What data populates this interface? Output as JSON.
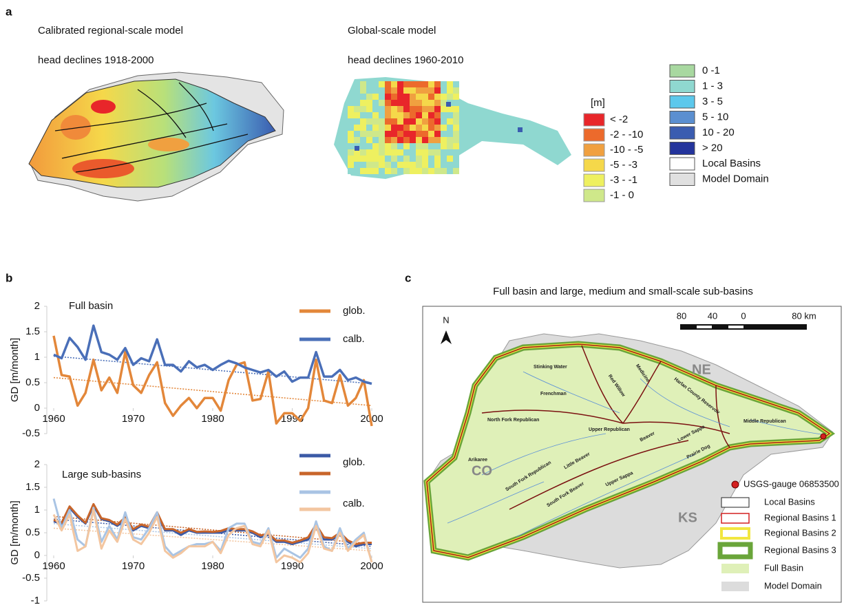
{
  "panel_labels": [
    "a",
    "b",
    "c"
  ],
  "panel_a": {
    "regional_title": "Calibrated regional-scale model",
    "regional_subtitle": "head declines 1918-2000",
    "global_title": "Global-scale model",
    "global_subtitle": "head declines 1960-2010",
    "legend_title": "[m]",
    "legend_decline": [
      {
        "label": "< -2",
        "color": "#e8262a"
      },
      {
        "label": "-2 - -10",
        "color": "#ec6a2c"
      },
      {
        "label": "-10 - -5",
        "color": "#f0a040"
      },
      {
        "label": "-5 - -3",
        "color": "#f5d84a"
      },
      {
        "label": "-3 - -1",
        "color": "#eef060"
      },
      {
        "label": "-1 - 0",
        "color": "#cfe88a"
      }
    ],
    "legend_rise": [
      {
        "label": "0 -1",
        "color": "#a8d8a0"
      },
      {
        "label": "1 - 3",
        "color": "#8fd8d0"
      },
      {
        "label": "3 - 5",
        "color": "#5cc8ec"
      },
      {
        "label": "5  - 10",
        "color": "#5b8fd0"
      },
      {
        "label": "10 - 20",
        "color": "#3a5cb0"
      },
      {
        "label": "> 20",
        "color": "#24349c"
      },
      {
        "label": "Local Basins",
        "color": "#ffffff"
      },
      {
        "label": "Model Domain",
        "color": "#e0e0e0"
      }
    ]
  },
  "chart_data": [
    {
      "type": "line",
      "title": "Full basin",
      "y_label": "GD [m/month]",
      "x": [
        1960,
        1961,
        1962,
        1963,
        1964,
        1965,
        1966,
        1967,
        1968,
        1969,
        1970,
        1971,
        1972,
        1973,
        1974,
        1975,
        1976,
        1977,
        1978,
        1979,
        1980,
        1981,
        1982,
        1983,
        1984,
        1985,
        1986,
        1987,
        1988,
        1989,
        1990,
        1991,
        1992,
        1993,
        1994,
        1995,
        1996,
        1997,
        1998,
        1999,
        2000
      ],
      "xlim": [
        1960,
        2000
      ],
      "xticks": [
        1960,
        1970,
        1980,
        1990,
        2000
      ],
      "ylim": [
        -0.5,
        2
      ],
      "yticks": [
        -0.5,
        0,
        0.5,
        1,
        1.5,
        2
      ],
      "grid": false,
      "series": [
        {
          "name": "glob.",
          "lines": [
            {
              "color": "#e3873a",
              "trend": [
                0.6,
                0.05
              ],
              "values": [
                1.42,
                0.65,
                0.62,
                0.05,
                0.3,
                0.95,
                0.35,
                0.6,
                0.3,
                1.1,
                0.45,
                0.3,
                0.65,
                0.9,
                0.1,
                -0.15,
                0.05,
                0.2,
                0.0,
                0.2,
                0.2,
                -0.05,
                0.55,
                0.85,
                0.9,
                0.15,
                0.18,
                0.72,
                -0.3,
                -0.1,
                -0.1,
                -0.25,
                0.0,
                0.95,
                0.15,
                0.1,
                0.65,
                0.05,
                0.2,
                0.55,
                -0.35
              ]
            }
          ]
        },
        {
          "name": "calb.",
          "lines": [
            {
              "color": "#4a6fb8",
              "trend": [
                1.02,
                0.48
              ],
              "values": [
                1.05,
                0.98,
                1.38,
                1.2,
                0.95,
                1.62,
                1.1,
                1.05,
                0.95,
                1.18,
                0.85,
                0.98,
                0.92,
                1.35,
                0.85,
                0.85,
                0.72,
                0.92,
                0.8,
                0.85,
                0.75,
                0.85,
                0.93,
                0.88,
                0.8,
                0.75,
                0.7,
                0.75,
                0.62,
                0.72,
                0.52,
                0.6,
                0.6,
                1.1,
                0.62,
                0.62,
                0.75,
                0.55,
                0.6,
                0.52,
                0.48
              ]
            }
          ]
        }
      ]
    },
    {
      "type": "line",
      "title": "Large sub-basins",
      "y_label": "GD [m/month]",
      "x": [
        1960,
        1961,
        1962,
        1963,
        1964,
        1965,
        1966,
        1967,
        1968,
        1969,
        1970,
        1971,
        1972,
        1973,
        1974,
        1975,
        1976,
        1977,
        1978,
        1979,
        1980,
        1981,
        1982,
        1983,
        1984,
        1985,
        1986,
        1987,
        1988,
        1989,
        1990,
        1991,
        1992,
        1993,
        1994,
        1995,
        1996,
        1997,
        1998,
        1999,
        2000
      ],
      "xlim": [
        1960,
        2000
      ],
      "xticks": [
        1960,
        1970,
        1980,
        1990,
        2000
      ],
      "ylim": [
        -1,
        2
      ],
      "yticks": [
        -1,
        -0.5,
        0,
        0.5,
        1,
        1.5,
        2
      ],
      "grid": false,
      "series": [
        {
          "name": "glob.",
          "lines": [
            {
              "color": "#3b5aa6",
              "trend": [
                0.8,
                0.2
              ],
              "values": [
                0.75,
                0.7,
                1.05,
                0.85,
                0.7,
                1.1,
                0.8,
                0.75,
                0.65,
                0.8,
                0.55,
                0.65,
                0.6,
                0.92,
                0.55,
                0.55,
                0.45,
                0.55,
                0.5,
                0.5,
                0.5,
                0.5,
                0.55,
                0.55,
                0.55,
                0.5,
                0.4,
                0.45,
                0.3,
                0.3,
                0.25,
                0.3,
                0.35,
                0.6,
                0.35,
                0.35,
                0.45,
                0.3,
                0.2,
                0.25,
                0.25
              ]
            },
            {
              "color": "#c8652a",
              "trend": [
                0.86,
                0.26
              ],
              "values": [
                0.78,
                0.72,
                1.08,
                0.88,
                0.72,
                1.13,
                0.82,
                0.78,
                0.68,
                0.84,
                0.58,
                0.68,
                0.63,
                0.95,
                0.58,
                0.58,
                0.5,
                0.58,
                0.52,
                0.53,
                0.52,
                0.54,
                0.6,
                0.58,
                0.58,
                0.53,
                0.44,
                0.48,
                0.33,
                0.33,
                0.28,
                0.33,
                0.4,
                0.68,
                0.4,
                0.38,
                0.5,
                0.33,
                0.25,
                0.28,
                0.28
              ]
            }
          ]
        },
        {
          "name": "calb.",
          "lines": [
            {
              "color": "#a9c4e4",
              "trend": [
                0.7,
                0.15
              ],
              "values": [
                1.25,
                0.6,
                1.0,
                0.35,
                0.2,
                1.05,
                0.3,
                0.65,
                0.35,
                0.95,
                0.4,
                0.35,
                0.6,
                0.95,
                0.2,
                0.0,
                0.1,
                0.2,
                0.25,
                0.25,
                0.3,
                0.1,
                0.6,
                0.7,
                0.7,
                0.3,
                0.25,
                0.6,
                -0.05,
                0.15,
                0.05,
                -0.05,
                0.15,
                0.75,
                0.2,
                0.1,
                0.6,
                0.15,
                0.35,
                0.5,
                -0.15
              ]
            },
            {
              "color": "#f3c6a0",
              "trend": [
                0.6,
                0.1
              ],
              "values": [
                0.9,
                0.55,
                0.9,
                0.1,
                0.2,
                1.0,
                0.15,
                0.55,
                0.3,
                0.8,
                0.35,
                0.25,
                0.5,
                0.85,
                0.1,
                -0.05,
                0.05,
                0.2,
                0.2,
                0.2,
                0.3,
                0.05,
                0.45,
                0.6,
                0.65,
                0.25,
                0.2,
                0.55,
                -0.15,
                0.0,
                -0.05,
                -0.15,
                0.05,
                0.65,
                0.15,
                0.1,
                0.5,
                0.1,
                0.3,
                0.45,
                -0.15
              ]
            }
          ]
        }
      ]
    }
  ],
  "panel_c": {
    "title": "Full basin and large, medium and small-scale sub-basins",
    "north": "N",
    "scale": [
      "80",
      "40",
      "0",
      "80 km"
    ],
    "region_labels": [
      "NE",
      "CO",
      "KS"
    ],
    "basins": [
      "Stinking Water",
      "Red Willow",
      "Medicine",
      "Frenchman",
      "Harlan County Reservoir",
      "Middle Republican",
      "North Fork Republican",
      "Upper Republican",
      "Beaver",
      "Lower Sappa",
      "Prairie Dog",
      "Little Beaver",
      "Arikaree",
      "South Fork Republican",
      "South Fork Beaver",
      "Upper Sappa"
    ],
    "legend": [
      "USGS-gauge 06853500",
      "Local Basins",
      "Regional Basins 1",
      "Regional Basins 2",
      "Regional Basins 3",
      "Full Basin",
      "Model Domain"
    ]
  }
}
